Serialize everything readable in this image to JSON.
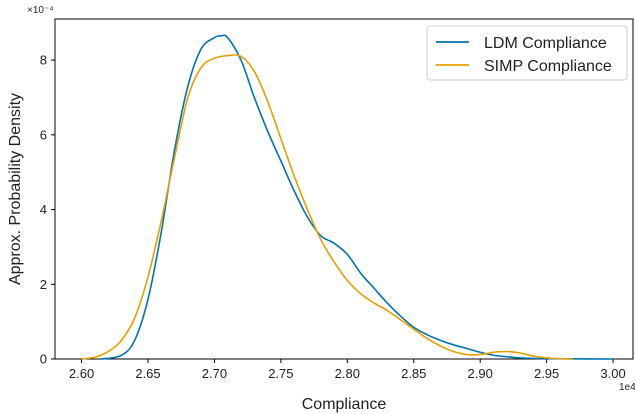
{
  "chart_data": {
    "type": "line",
    "xlabel": "Compliance",
    "ylabel": "Approx. Probability Density",
    "x_multiplier_label": "1e4",
    "y_multiplier_label": "×10⁻⁴",
    "xlim": [
      2.58,
      3.015
    ],
    "ylim": [
      0,
      9.1
    ],
    "xticks": [
      "2.60",
      "2.65",
      "2.70",
      "2.75",
      "2.80",
      "2.85",
      "2.90",
      "2.95",
      "3.00"
    ],
    "yticks": [
      "0",
      "2",
      "4",
      "6",
      "8"
    ],
    "legend_position": "top-right",
    "series": [
      {
        "name": "LDM Compliance",
        "color": "#0072B2",
        "x": [
          2.615,
          2.63,
          2.64,
          2.65,
          2.66,
          2.67,
          2.68,
          2.69,
          2.7,
          2.705,
          2.71,
          2.72,
          2.73,
          2.74,
          2.75,
          2.76,
          2.77,
          2.78,
          2.79,
          2.8,
          2.81,
          2.82,
          2.83,
          2.84,
          2.85,
          2.86,
          2.87,
          2.88,
          2.89,
          2.9,
          2.91,
          2.92,
          2.93,
          2.95,
          2.97,
          3.0
        ],
        "y": [
          0.0,
          0.1,
          0.5,
          1.6,
          3.4,
          5.6,
          7.3,
          8.3,
          8.6,
          8.65,
          8.6,
          8.0,
          7.0,
          6.1,
          5.3,
          4.5,
          3.8,
          3.3,
          3.1,
          2.8,
          2.3,
          1.9,
          1.5,
          1.15,
          0.85,
          0.65,
          0.5,
          0.38,
          0.28,
          0.18,
          0.1,
          0.06,
          0.03,
          0.01,
          0.005,
          0.0
        ]
      },
      {
        "name": "SIMP Compliance",
        "color": "#E69F00",
        "x": [
          2.6,
          2.61,
          2.62,
          2.63,
          2.64,
          2.65,
          2.66,
          2.67,
          2.68,
          2.69,
          2.7,
          2.71,
          2.72,
          2.73,
          2.74,
          2.75,
          2.76,
          2.77,
          2.78,
          2.79,
          2.8,
          2.81,
          2.82,
          2.83,
          2.84,
          2.85,
          2.86,
          2.87,
          2.88,
          2.89,
          2.9,
          2.91,
          2.92,
          2.93,
          2.94,
          2.95,
          2.96,
          2.97
        ],
        "y": [
          0.0,
          0.05,
          0.2,
          0.5,
          1.1,
          2.2,
          3.7,
          5.4,
          7.0,
          7.8,
          8.05,
          8.12,
          8.1,
          7.7,
          6.9,
          5.9,
          4.9,
          4.0,
          3.2,
          2.6,
          2.1,
          1.75,
          1.5,
          1.3,
          1.05,
          0.8,
          0.55,
          0.35,
          0.2,
          0.12,
          0.12,
          0.18,
          0.2,
          0.16,
          0.08,
          0.03,
          0.01,
          0.0
        ]
      }
    ]
  }
}
